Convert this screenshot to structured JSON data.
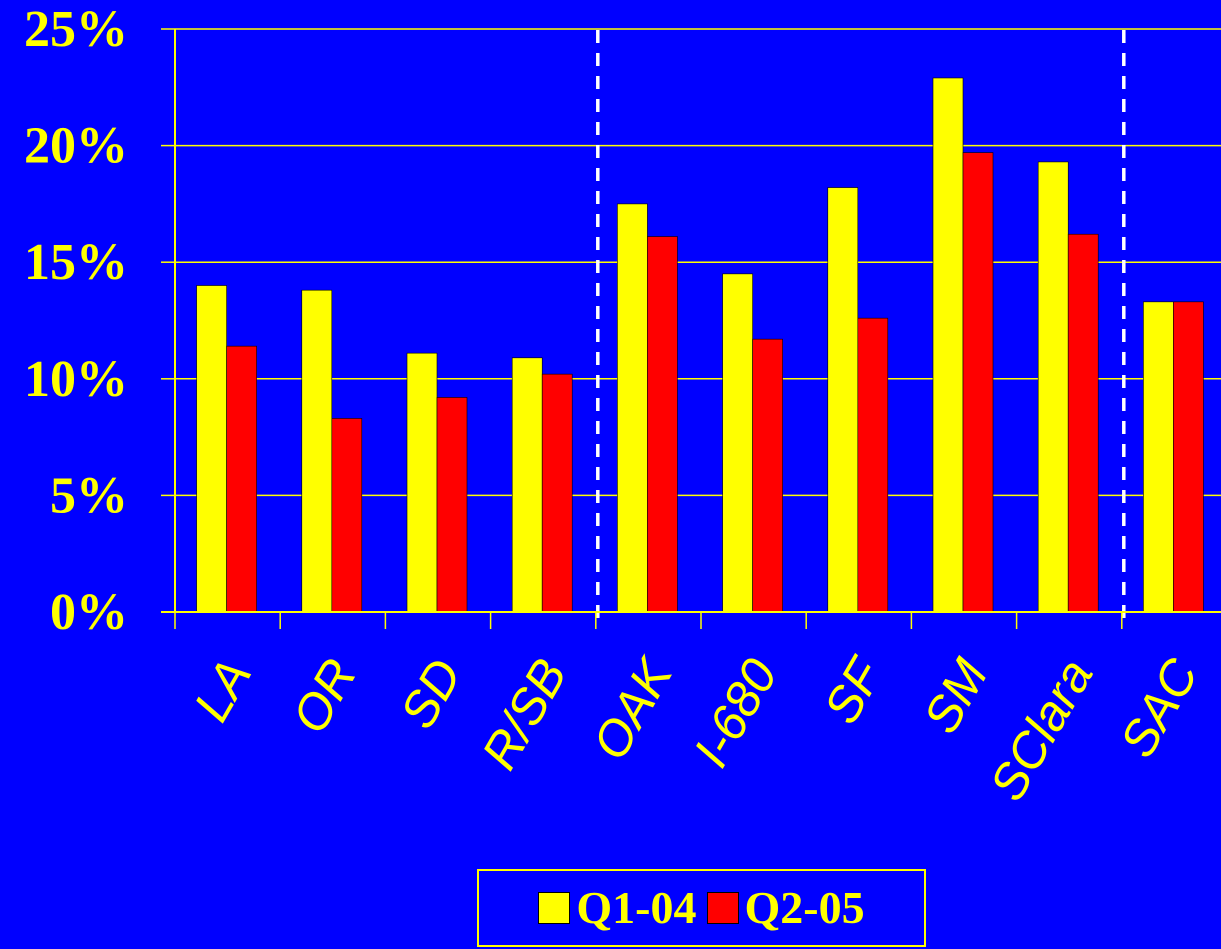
{
  "colors": {
    "background": "#0000FF",
    "axis_text": "#FFFF00",
    "gridline": "#FFFF00",
    "divider": "#FFFFFF"
  },
  "chart_data": {
    "type": "bar",
    "title": "",
    "xlabel": "",
    "ylabel": "",
    "categories": [
      "LA",
      "OR",
      "SD",
      "R/SB",
      "OAK",
      "I-680",
      "SF",
      "SM",
      "SClara",
      "SAC"
    ],
    "series": [
      {
        "name": "Q1-04",
        "color": "#FFFF00",
        "values": [
          14.0,
          13.8,
          11.1,
          10.9,
          17.5,
          14.5,
          18.2,
          22.9,
          19.3,
          13.3
        ]
      },
      {
        "name": "Q2-05",
        "color": "#FF0000",
        "values": [
          11.4,
          8.3,
          9.2,
          10.2,
          16.1,
          11.7,
          12.6,
          19.7,
          16.2,
          13.3
        ]
      }
    ],
    "ylim": [
      0,
      25
    ],
    "yticks": [
      0,
      5,
      10,
      15,
      20,
      25
    ],
    "ytick_labels": [
      "0%",
      "5%",
      "10%",
      "15%",
      "20%",
      "25%"
    ],
    "grid": true,
    "dividers_after_category": [
      "R/SB",
      "SClara"
    ],
    "legend_position": "bottom-center"
  }
}
